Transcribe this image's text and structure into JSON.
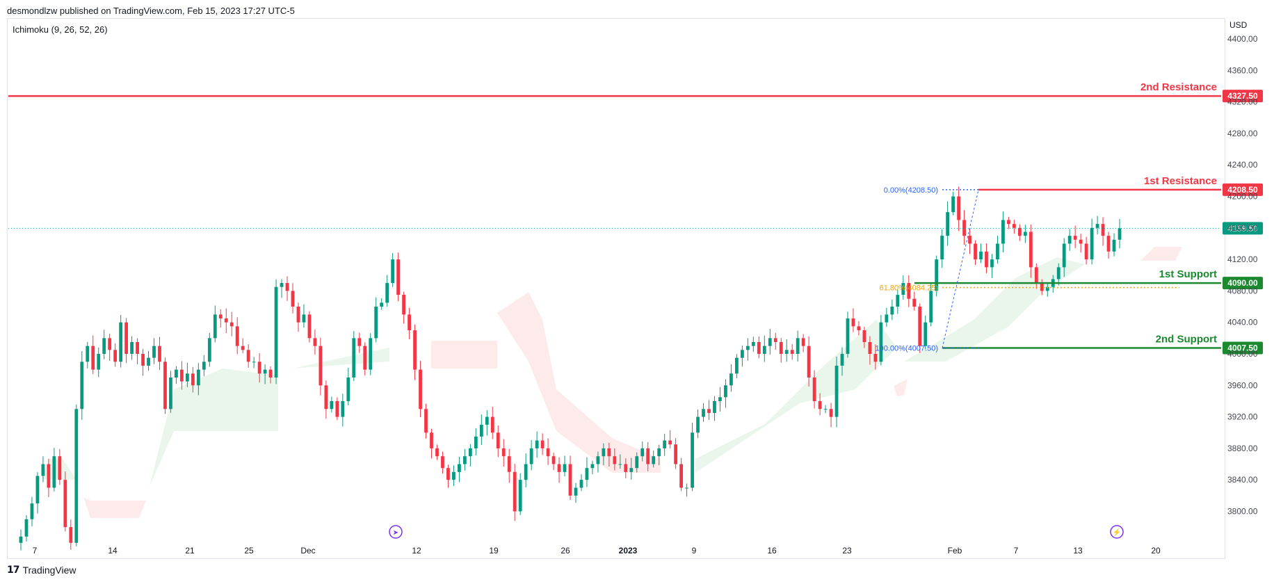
{
  "header": {
    "published": "desmondlzw published on TradingView.com, Feb 15, 2023 17:27 UTC-5",
    "indicator": "Ichimoku (9, 26, 52, 26)"
  },
  "footer": {
    "brand": "TradingView"
  },
  "chart_data": {
    "type": "candlestick",
    "currency": "USD",
    "y_axis": {
      "ticks": [
        3800,
        3840,
        3880,
        3920,
        3960,
        4000,
        4040,
        4080,
        4120,
        4160,
        4200,
        4240,
        4280,
        4320,
        4360,
        4400
      ],
      "tick_labels": [
        "3800.00",
        "3840.00",
        "3880.00",
        "3920.00",
        "3960.00",
        "4000.00",
        "4040.00",
        "4080.00",
        "4120.00",
        "4160.00",
        "4200.00",
        "4240.00",
        "4280.00",
        "4320.00",
        "4360.00",
        "4400.00"
      ]
    },
    "x_axis": {
      "labels": [
        "7",
        "14",
        "21",
        "25",
        "Dec",
        "12",
        "19",
        "26",
        "2023",
        "9",
        "16",
        "23",
        "Feb",
        "7",
        "13",
        "20"
      ]
    },
    "levels": [
      {
        "name": "2nd Resistance",
        "value": 4327.5,
        "label": "4327.50",
        "color": "#f23645"
      },
      {
        "name": "1st Resistance",
        "value": 4208.5,
        "label": "4208.50",
        "color": "#f23645"
      },
      {
        "name": "1st Support",
        "value": 4090.0,
        "label": "4090.00",
        "color": "#1b8a2f"
      },
      {
        "name": "2nd Support",
        "value": 4007.5,
        "label": "4007.50",
        "color": "#1b8a2f"
      }
    ],
    "fibonacci": [
      {
        "label": "0.00%(4208.50)",
        "value": 4208.5,
        "color": "#2962ff"
      },
      {
        "label": "61.80%(4084.25)",
        "value": 4084.25,
        "color": "#f0a30a"
      },
      {
        "label": "100.00%(4007.50)",
        "value": 4007.5,
        "color": "#2962ff"
      }
    ],
    "last_price": {
      "value": 4159.5,
      "label": "4159.50",
      "color": "#089981"
    },
    "closes": [
      3768,
      3790,
      3810,
      3845,
      3860,
      3830,
      3870,
      3840,
      3780,
      3760,
      3930,
      3990,
      4010,
      3980,
      4000,
      4020,
      4005,
      3990,
      4040,
      4000,
      4015,
      4000,
      3985,
      3995,
      4010,
      3990,
      3930,
      3970,
      3980,
      3965,
      3975,
      3960,
      3980,
      3990,
      4020,
      4050,
      4045,
      4040,
      4035,
      4010,
      4005,
      3990,
      3990,
      3975,
      3980,
      3970,
      4085,
      4090,
      4080,
      4060,
      4040,
      4050,
      4020,
      4010,
      3960,
      3930,
      3940,
      3920,
      3940,
      3970,
      4020,
      4010,
      3980,
      4020,
      4060,
      4065,
      4090,
      4120,
      4075,
      4050,
      4030,
      3980,
      3930,
      3900,
      3880,
      3870,
      3855,
      3840,
      3850,
      3860,
      3870,
      3880,
      3895,
      3910,
      3920,
      3900,
      3880,
      3870,
      3850,
      3800,
      3840,
      3860,
      3880,
      3890,
      3880,
      3870,
      3860,
      3850,
      3860,
      3820,
      3830,
      3840,
      3855,
      3860,
      3870,
      3880,
      3870,
      3860,
      3860,
      3850,
      3855,
      3870,
      3880,
      3860,
      3870,
      3880,
      3890,
      3885,
      3860,
      3830,
      3830,
      3900,
      3920,
      3930,
      3925,
      3940,
      3945,
      3960,
      3975,
      3995,
      4005,
      4010,
      4015,
      4000,
      4010,
      4020,
      4015,
      4000,
      4005,
      4000,
      4020,
      4010,
      3970,
      3940,
      3930,
      3930,
      3920,
      3985,
      4000,
      4045,
      4035,
      4030,
      4015,
      4000,
      3990,
      4040,
      4050,
      4060,
      4075,
      4090,
      4070,
      4060,
      4010,
      4040,
      4080,
      4120,
      4150,
      4180,
      4200,
      4170,
      4150,
      4140,
      4120,
      4130,
      4110,
      4120,
      4140,
      4170,
      4165,
      4160,
      4150,
      4155,
      4110,
      4090,
      4080,
      4085,
      4095,
      4110,
      4140,
      4150,
      4145,
      4140,
      4120,
      4160,
      4165,
      4150,
      4130,
      4145,
      4159.5
    ]
  }
}
